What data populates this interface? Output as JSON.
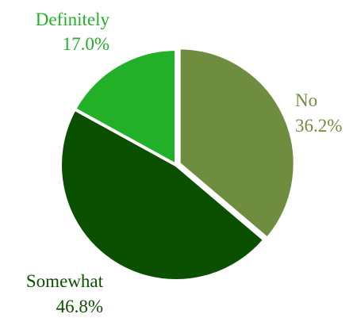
{
  "chart_data": {
    "type": "pie",
    "title": "",
    "slices": [
      {
        "label": "No",
        "value": 36.2,
        "value_label": "36.2%",
        "color": "#6f8d3f"
      },
      {
        "label": "Somewhat",
        "value": 46.8,
        "value_label": "46.8%",
        "color": "#0b5000"
      },
      {
        "label": "Definitely",
        "value": 17.0,
        "value_label": "17.0%",
        "color": "#21b027"
      }
    ],
    "start": "12 o'clock",
    "direction": "clockwise",
    "legend": "none"
  }
}
